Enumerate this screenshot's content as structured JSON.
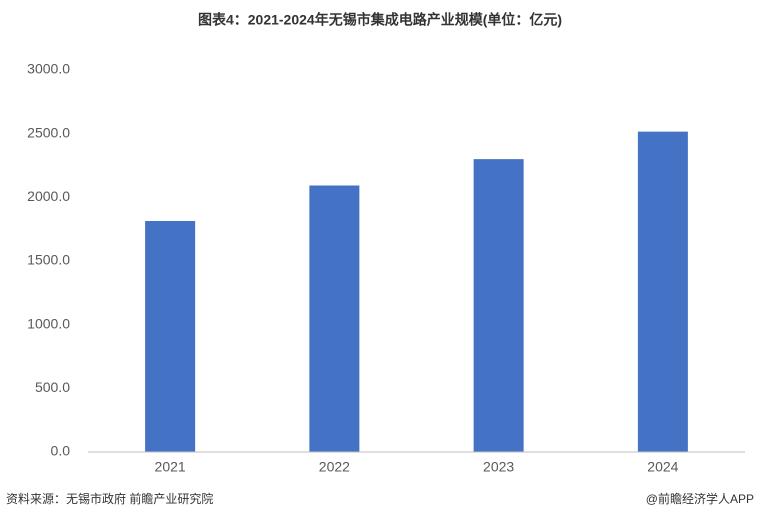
{
  "chart_data": {
    "type": "bar",
    "title": "图表4：2021-2024年无锡市集成电路产业规模(单位：亿元)",
    "categories": [
      "2021",
      "2022",
      "2023",
      "2024"
    ],
    "values": [
      1814,
      2093,
      2300,
      2516
    ],
    "color": "#4472c4",
    "ylim": [
      0,
      3000
    ],
    "yticks": [
      {
        "value": 0,
        "label": "0.0"
      },
      {
        "value": 500,
        "label": "500.0"
      },
      {
        "value": 1000,
        "label": "1000.0"
      },
      {
        "value": 1500,
        "label": "1500.0"
      },
      {
        "value": 2000,
        "label": "2000.0"
      },
      {
        "value": 2500,
        "label": "2500.0"
      },
      {
        "value": 3000,
        "label": "3000.0"
      }
    ],
    "grid": false,
    "source": "资料来源：无锡市政府 前瞻产业研究院",
    "credit": "@前瞻经济学人APP"
  }
}
